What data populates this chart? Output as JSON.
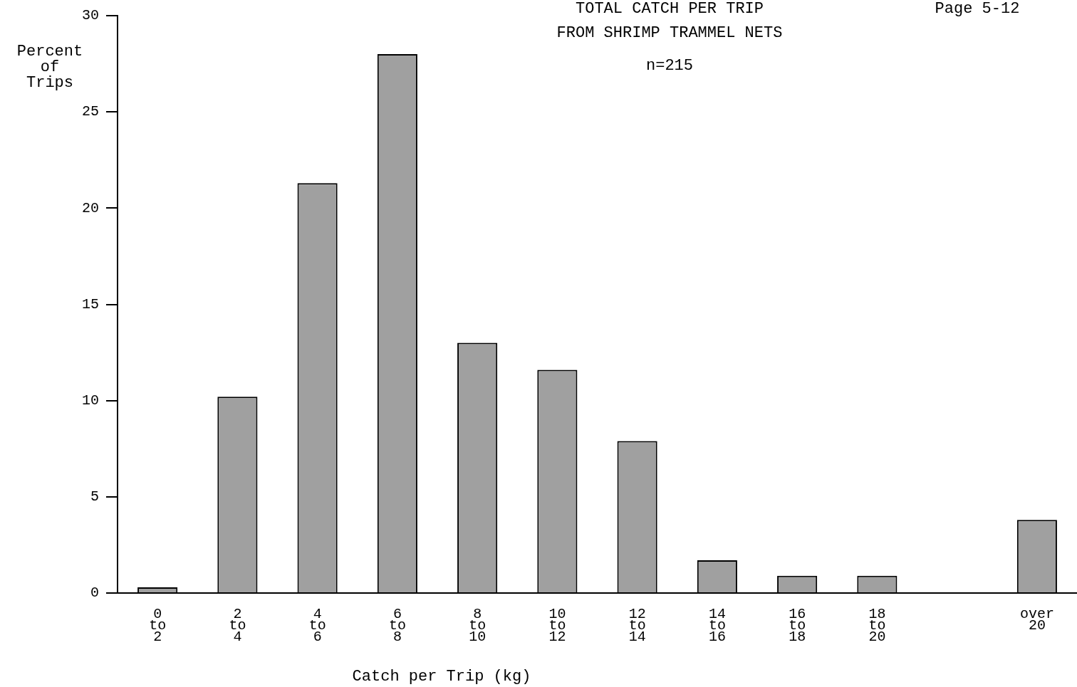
{
  "chart_data": {
    "type": "bar",
    "title": "TOTAL CATCH PER TRIP",
    "subtitle": "FROM SHRIMP TRAMMEL NETS",
    "annotations": [
      "n=215",
      "Page 5-12"
    ],
    "ylabel": "Percent\nof\nTrips",
    "xlabel": "Catch per Trip (kg)",
    "categories": [
      "0\nto\n2",
      "2\nto\n4",
      "4\nto\n6",
      "6\nto\n8",
      "8\nto\n10",
      "10\nto\n12",
      "12\nto\n14",
      "14\nto\n16",
      "16\nto\n18",
      "18\nto\n20",
      null,
      "over\n20"
    ],
    "values": [
      0.3,
      10.2,
      21.3,
      28.0,
      13.0,
      11.6,
      7.9,
      1.7,
      0.9,
      0.9,
      null,
      3.8
    ],
    "color": "#a0a0a0",
    "ylim": [
      0,
      30
    ],
    "yticks": [
      0,
      5,
      10,
      15,
      20,
      25,
      30
    ],
    "grid": false,
    "legend": false
  }
}
